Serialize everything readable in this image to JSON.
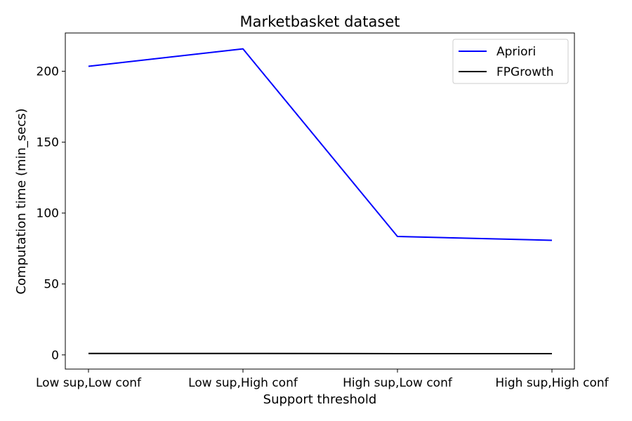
{
  "chart_data": {
    "type": "line",
    "title": "Marketbasket dataset",
    "xlabel": "Support threshold",
    "ylabel": "Computation time (min_secs)",
    "categories": [
      "Low sup,Low conf",
      "Low sup,High conf",
      "High sup,Low conf",
      "High sup,High conf"
    ],
    "y_ticks": [
      0,
      50,
      100,
      150,
      200
    ],
    "ylim": [
      -10,
      227
    ],
    "grid": false,
    "legend_position": "top-right",
    "series": [
      {
        "name": "Apriori",
        "color": "#0000ff",
        "values": [
          203.5,
          215.8,
          83.5,
          80.8
        ]
      },
      {
        "name": "FPGrowth",
        "color": "#000000",
        "values": [
          1.0,
          1.0,
          0.9,
          0.9
        ]
      }
    ]
  }
}
